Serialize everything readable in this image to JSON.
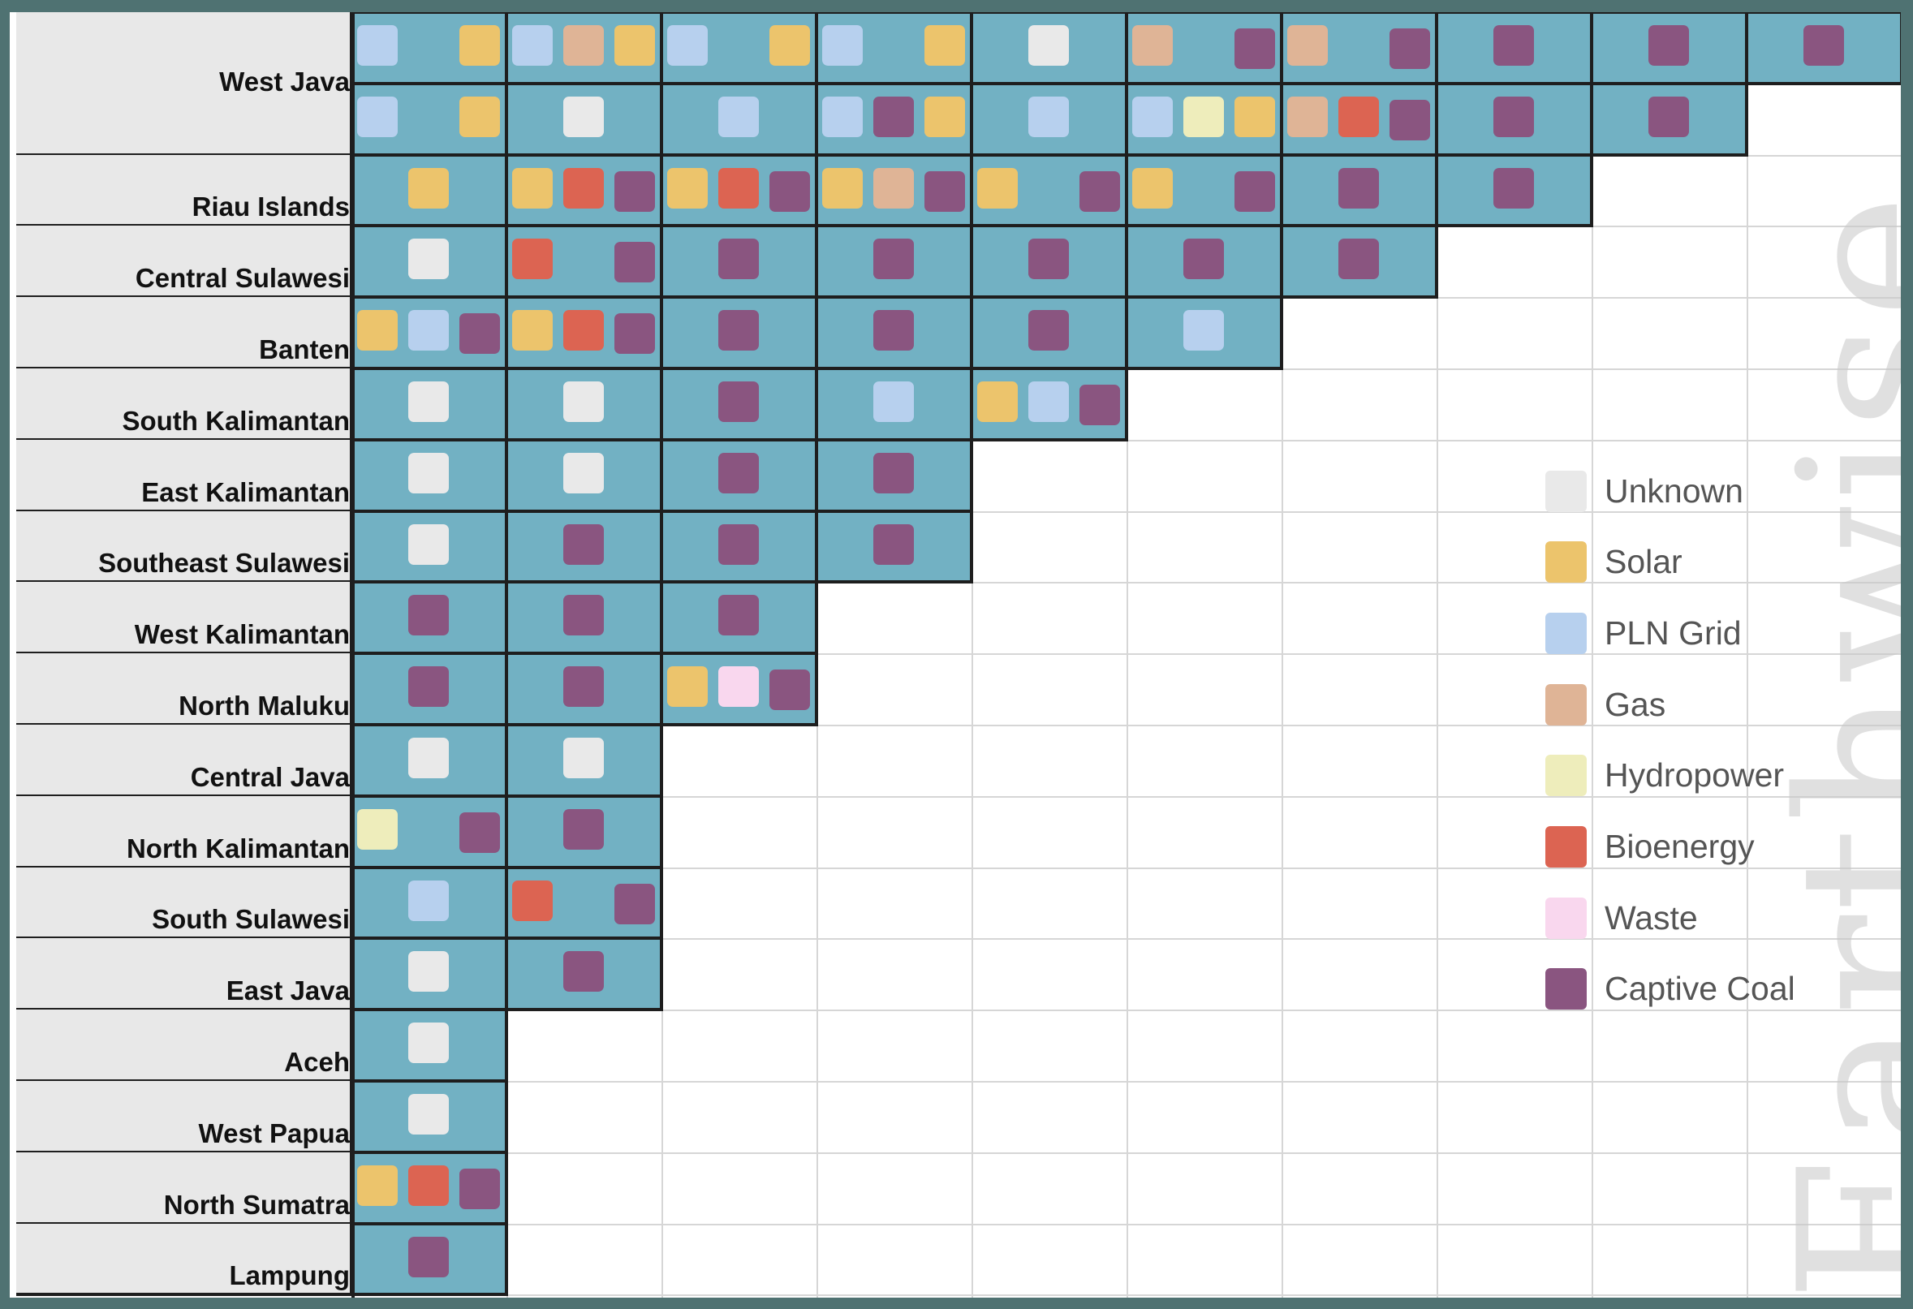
{
  "chart_data": {
    "type": "table",
    "legend_placement": "right",
    "legend": [
      {
        "key": "unknown",
        "label": "Unknown",
        "color": "#e9e9e9"
      },
      {
        "key": "solar",
        "label": "Solar",
        "color": "#ecc46c"
      },
      {
        "key": "pln",
        "label": "PLN Grid",
        "color": "#b7d0ee"
      },
      {
        "key": "gas",
        "label": "Gas",
        "color": "#dfb496"
      },
      {
        "key": "hydro",
        "label": "Hydropower",
        "color": "#eeedbb"
      },
      {
        "key": "bio",
        "label": "Bioenergy",
        "color": "#dc6452"
      },
      {
        "key": "waste",
        "label": "Waste",
        "color": "#f9d7ee"
      },
      {
        "key": "coal",
        "label": "Captive Coal",
        "color": "#8a5580"
      }
    ],
    "cell_color": "#72b1c3",
    "rows": [
      {
        "label": "West Java",
        "lines": [
          [
            [
              "pln",
              null,
              "solar"
            ],
            [
              "pln",
              "gas",
              "solar"
            ],
            [
              "pln",
              null,
              "solar"
            ],
            [
              "pln",
              null,
              "solar"
            ],
            [
              null,
              "unknown",
              null
            ],
            [
              "gas",
              null,
              "coal"
            ],
            [
              "gas",
              null,
              "coal"
            ],
            [
              null,
              "coal",
              null
            ],
            [
              null,
              "coal",
              null
            ],
            [
              null,
              "coal",
              null
            ]
          ],
          [
            [
              "pln",
              null,
              "solar"
            ],
            [
              null,
              "unknown",
              null
            ],
            [
              null,
              "pln",
              null
            ],
            [
              "pln",
              "coal",
              "solar"
            ],
            [
              null,
              "pln",
              null
            ],
            [
              "pln",
              "hydro",
              "solar"
            ],
            [
              "gas",
              "bio",
              "coal"
            ],
            [
              null,
              "coal",
              null
            ],
            [
              null,
              "coal",
              null
            ]
          ]
        ]
      },
      {
        "label": "Riau Islands",
        "lines": [
          [
            [
              null,
              "solar",
              null
            ],
            [
              "solar",
              "bio",
              "coal"
            ],
            [
              "solar",
              "bio",
              "coal"
            ],
            [
              "solar",
              "gas",
              "coal"
            ],
            [
              "solar",
              null,
              "coal"
            ],
            [
              "solar",
              null,
              "coal"
            ],
            [
              null,
              "coal",
              null
            ],
            [
              null,
              "coal",
              null
            ]
          ]
        ]
      },
      {
        "label": "Central Sulawesi",
        "lines": [
          [
            [
              null,
              "unknown",
              null
            ],
            [
              "bio",
              null,
              "coal"
            ],
            [
              null,
              "coal",
              null
            ],
            [
              null,
              "coal",
              null
            ],
            [
              null,
              "coal",
              null
            ],
            [
              null,
              "coal",
              null
            ],
            [
              null,
              "coal",
              null
            ]
          ]
        ]
      },
      {
        "label": "Banten",
        "lines": [
          [
            [
              "solar",
              "pln",
              "coal"
            ],
            [
              "solar",
              "bio",
              "coal"
            ],
            [
              null,
              "coal",
              null
            ],
            [
              null,
              "coal",
              null
            ],
            [
              null,
              "coal",
              null
            ],
            [
              null,
              "pln",
              null
            ]
          ]
        ]
      },
      {
        "label": "South Kalimantan",
        "lines": [
          [
            [
              null,
              "unknown",
              null
            ],
            [
              null,
              "unknown",
              null
            ],
            [
              null,
              "coal",
              null
            ],
            [
              null,
              "pln",
              null
            ],
            [
              "solar",
              "pln",
              "coal"
            ]
          ]
        ]
      },
      {
        "label": "East Kalimantan",
        "lines": [
          [
            [
              null,
              "unknown",
              null
            ],
            [
              null,
              "unknown",
              null
            ],
            [
              null,
              "coal",
              null
            ],
            [
              null,
              "coal",
              null
            ]
          ]
        ]
      },
      {
        "label": "Southeast Sulawesi",
        "lines": [
          [
            [
              null,
              "unknown",
              null
            ],
            [
              null,
              "coal",
              null
            ],
            [
              null,
              "coal",
              null
            ],
            [
              null,
              "coal",
              null
            ]
          ]
        ]
      },
      {
        "label": "West Kalimantan",
        "lines": [
          [
            [
              null,
              "coal",
              null
            ],
            [
              null,
              "coal",
              null
            ],
            [
              null,
              "coal",
              null
            ]
          ]
        ]
      },
      {
        "label": "North Maluku",
        "lines": [
          [
            [
              null,
              "coal",
              null
            ],
            [
              null,
              "coal",
              null
            ],
            [
              "solar",
              "waste",
              "coal"
            ]
          ]
        ]
      },
      {
        "label": "Central Java",
        "lines": [
          [
            [
              null,
              "unknown",
              null
            ],
            [
              null,
              "unknown",
              null
            ]
          ]
        ]
      },
      {
        "label": "North Kalimantan",
        "lines": [
          [
            [
              "hydro",
              null,
              "coal"
            ],
            [
              null,
              "coal",
              null
            ]
          ]
        ]
      },
      {
        "label": "South Sulawesi",
        "lines": [
          [
            [
              null,
              "pln",
              null
            ],
            [
              "bio",
              null,
              "coal"
            ]
          ]
        ]
      },
      {
        "label": "East Java",
        "lines": [
          [
            [
              null,
              "unknown",
              null
            ],
            [
              null,
              "coal",
              null
            ]
          ]
        ]
      },
      {
        "label": "Aceh",
        "lines": [
          [
            [
              null,
              "unknown",
              null
            ]
          ]
        ]
      },
      {
        "label": "West Papua",
        "lines": [
          [
            [
              null,
              "unknown",
              null
            ]
          ]
        ]
      },
      {
        "label": "North Sumatra",
        "lines": [
          [
            [
              "solar",
              "bio",
              "coal"
            ]
          ]
        ]
      },
      {
        "label": "Lampung",
        "lines": [
          [
            [
              null,
              "coal",
              null
            ]
          ]
        ]
      }
    ]
  },
  "watermark": "Earthwise"
}
